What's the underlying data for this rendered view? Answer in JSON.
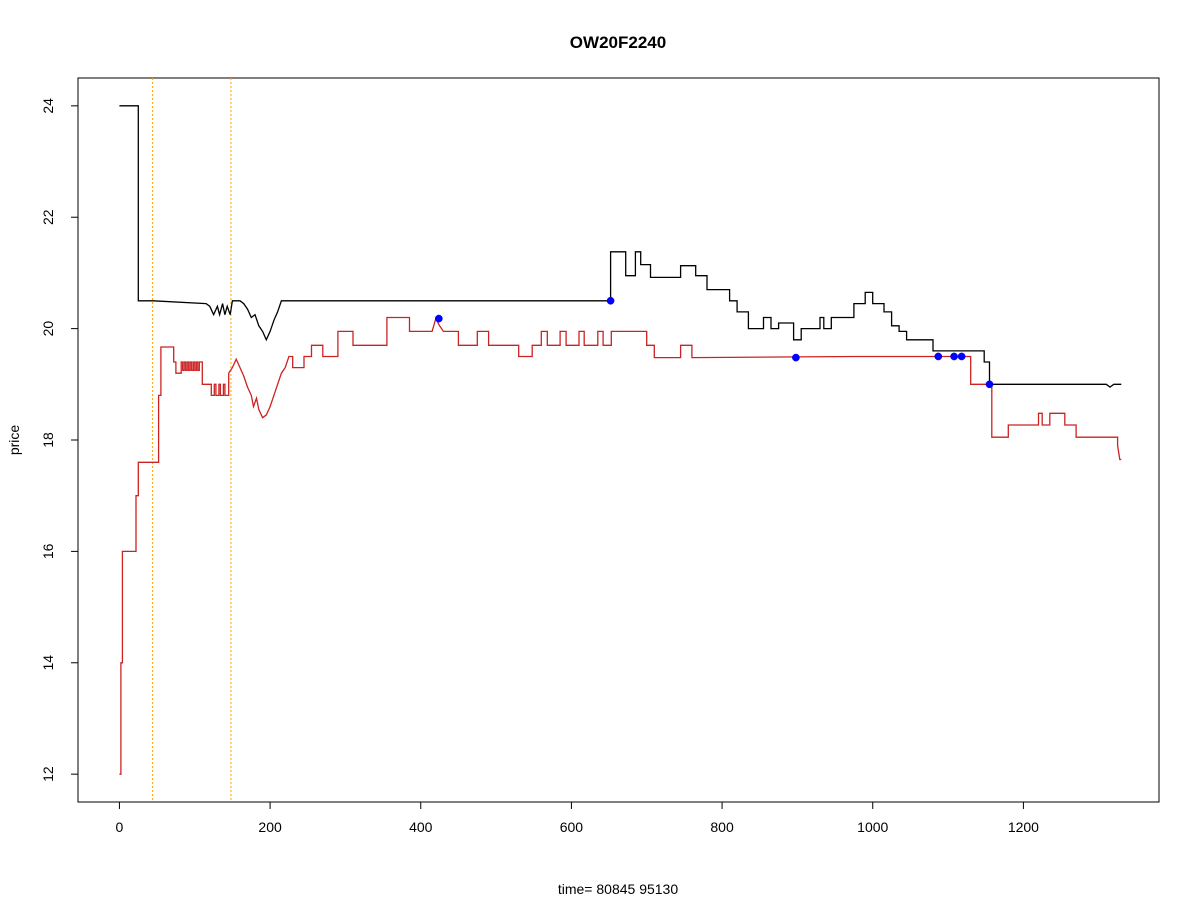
{
  "chart_data": {
    "type": "line",
    "title": "OW20F2240",
    "xlabel": "time= 80845 95130",
    "ylabel": "price",
    "xlim": [
      -55,
      1380
    ],
    "ylim": [
      11.5,
      24.5
    ],
    "xticks": [
      0,
      200,
      400,
      600,
      800,
      1000,
      1200
    ],
    "yticks": [
      12,
      14,
      16,
      18,
      20,
      22,
      24
    ],
    "grid": false,
    "legend": "none",
    "step": true,
    "vlines": {
      "color": "#ffa500",
      "x": [
        44,
        148
      ]
    },
    "series": [
      {
        "color": "#000000",
        "points": [
          [
            0,
            24
          ],
          [
            25,
            24
          ],
          [
            25,
            20.5
          ],
          [
            45,
            20.5
          ],
          [
            115,
            20.45
          ],
          [
            120,
            20.4
          ],
          [
            125,
            20.25
          ],
          [
            130,
            20.4
          ],
          [
            133,
            20.25
          ],
          [
            137,
            20.45
          ],
          [
            140,
            20.25
          ],
          [
            143,
            20.4
          ],
          [
            147,
            20.25
          ],
          [
            150,
            20.5
          ],
          [
            160,
            20.5
          ],
          [
            165,
            20.45
          ],
          [
            170,
            20.35
          ],
          [
            175,
            20.2
          ],
          [
            180,
            20.25
          ],
          [
            185,
            20.05
          ],
          [
            190,
            19.95
          ],
          [
            195,
            19.8
          ],
          [
            200,
            19.95
          ],
          [
            205,
            20.15
          ],
          [
            210,
            20.3
          ],
          [
            215,
            20.5
          ],
          [
            652,
            20.5
          ],
          [
            652,
            21.38
          ],
          [
            672,
            21.38
          ],
          [
            672,
            20.95
          ],
          [
            685,
            20.95
          ],
          [
            685,
            21.38
          ],
          [
            692,
            21.38
          ],
          [
            692,
            21.15
          ],
          [
            705,
            21.15
          ],
          [
            705,
            20.92
          ],
          [
            745,
            20.92
          ],
          [
            745,
            21.13
          ],
          [
            765,
            21.13
          ],
          [
            765,
            20.95
          ],
          [
            780,
            20.95
          ],
          [
            780,
            20.7
          ],
          [
            810,
            20.7
          ],
          [
            810,
            20.5
          ],
          [
            820,
            20.5
          ],
          [
            820,
            20.3
          ],
          [
            835,
            20.3
          ],
          [
            835,
            20.0
          ],
          [
            855,
            20.0
          ],
          [
            855,
            20.2
          ],
          [
            865,
            20.2
          ],
          [
            865,
            20.0
          ],
          [
            875,
            20.0
          ],
          [
            875,
            20.1
          ],
          [
            895,
            20.1
          ],
          [
            895,
            19.8
          ],
          [
            905,
            19.8
          ],
          [
            905,
            20.0
          ],
          [
            930,
            20.0
          ],
          [
            930,
            20.2
          ],
          [
            935,
            20.2
          ],
          [
            935,
            20.0
          ],
          [
            945,
            20.0
          ],
          [
            945,
            20.2
          ],
          [
            975,
            20.2
          ],
          [
            975,
            20.45
          ],
          [
            990,
            20.45
          ],
          [
            990,
            20.65
          ],
          [
            1000,
            20.65
          ],
          [
            1000,
            20.45
          ],
          [
            1015,
            20.45
          ],
          [
            1015,
            20.3
          ],
          [
            1025,
            20.3
          ],
          [
            1025,
            20.05
          ],
          [
            1035,
            20.05
          ],
          [
            1035,
            19.95
          ],
          [
            1045,
            19.95
          ],
          [
            1045,
            19.8
          ],
          [
            1080,
            19.8
          ],
          [
            1080,
            19.6
          ],
          [
            1148,
            19.6
          ],
          [
            1148,
            19.4
          ],
          [
            1155,
            19.4
          ],
          [
            1155,
            19.0
          ],
          [
            1310,
            19.0
          ],
          [
            1315,
            18.95
          ],
          [
            1320,
            19.0
          ],
          [
            1330,
            19.0
          ]
        ]
      },
      {
        "color": "#cc2222",
        "points": [
          [
            0,
            12
          ],
          [
            2,
            12
          ],
          [
            2,
            14
          ],
          [
            4,
            14
          ],
          [
            4,
            16
          ],
          [
            22,
            16
          ],
          [
            22,
            17.0
          ],
          [
            25,
            17.0
          ],
          [
            25,
            17.6
          ],
          [
            52,
            17.6
          ],
          [
            52,
            18.8
          ],
          [
            55,
            18.8
          ],
          [
            55,
            19.67
          ],
          [
            72,
            19.67
          ],
          [
            72,
            19.4
          ],
          [
            75,
            19.4
          ],
          [
            75,
            19.2
          ],
          [
            82,
            19.2
          ],
          [
            82,
            19.4
          ],
          [
            84,
            19.4
          ],
          [
            84,
            19.25
          ],
          [
            86,
            19.25
          ],
          [
            86,
            19.4
          ],
          [
            88,
            19.4
          ],
          [
            88,
            19.25
          ],
          [
            90,
            19.25
          ],
          [
            90,
            19.4
          ],
          [
            92,
            19.4
          ],
          [
            92,
            19.25
          ],
          [
            94,
            19.25
          ],
          [
            94,
            19.4
          ],
          [
            96,
            19.4
          ],
          [
            96,
            19.25
          ],
          [
            98,
            19.25
          ],
          [
            98,
            19.4
          ],
          [
            100,
            19.4
          ],
          [
            100,
            19.25
          ],
          [
            102,
            19.25
          ],
          [
            102,
            19.4
          ],
          [
            104,
            19.4
          ],
          [
            104,
            19.25
          ],
          [
            106,
            19.25
          ],
          [
            106,
            19.4
          ],
          [
            110,
            19.4
          ],
          [
            110,
            19.0
          ],
          [
            122,
            19.0
          ],
          [
            122,
            18.8
          ],
          [
            126,
            18.8
          ],
          [
            126,
            19.0
          ],
          [
            128,
            19.0
          ],
          [
            128,
            18.8
          ],
          [
            132,
            18.8
          ],
          [
            132,
            19.0
          ],
          [
            134,
            19.0
          ],
          [
            134,
            18.8
          ],
          [
            138,
            18.8
          ],
          [
            138,
            19.0
          ],
          [
            140,
            19.0
          ],
          [
            140,
            18.8
          ],
          [
            145,
            18.8
          ],
          [
            145,
            19.2
          ],
          [
            150,
            19.3
          ],
          [
            155,
            19.45
          ],
          [
            160,
            19.3
          ],
          [
            165,
            19.15
          ],
          [
            170,
            18.95
          ],
          [
            175,
            18.8
          ],
          [
            178,
            18.6
          ],
          [
            182,
            18.75
          ],
          [
            185,
            18.55
          ],
          [
            190,
            18.4
          ],
          [
            195,
            18.45
          ],
          [
            200,
            18.6
          ],
          [
            205,
            18.8
          ],
          [
            210,
            19.0
          ],
          [
            215,
            19.2
          ],
          [
            220,
            19.3
          ],
          [
            225,
            19.5
          ],
          [
            230,
            19.5
          ],
          [
            230,
            19.3
          ],
          [
            245,
            19.3
          ],
          [
            245,
            19.5
          ],
          [
            255,
            19.5
          ],
          [
            255,
            19.7
          ],
          [
            270,
            19.7
          ],
          [
            270,
            19.5
          ],
          [
            290,
            19.5
          ],
          [
            290,
            19.95
          ],
          [
            310,
            19.95
          ],
          [
            310,
            19.7
          ],
          [
            355,
            19.7
          ],
          [
            355,
            20.2
          ],
          [
            385,
            20.2
          ],
          [
            385,
            19.95
          ],
          [
            415,
            19.95
          ],
          [
            420,
            20.18
          ],
          [
            425,
            20.05
          ],
          [
            430,
            19.95
          ],
          [
            450,
            19.95
          ],
          [
            450,
            19.7
          ],
          [
            475,
            19.7
          ],
          [
            475,
            19.95
          ],
          [
            490,
            19.95
          ],
          [
            490,
            19.7
          ],
          [
            530,
            19.7
          ],
          [
            530,
            19.5
          ],
          [
            548,
            19.5
          ],
          [
            548,
            19.7
          ],
          [
            560,
            19.7
          ],
          [
            560,
            19.95
          ],
          [
            568,
            19.95
          ],
          [
            568,
            19.7
          ],
          [
            585,
            19.7
          ],
          [
            585,
            19.95
          ],
          [
            593,
            19.95
          ],
          [
            593,
            19.7
          ],
          [
            610,
            19.7
          ],
          [
            610,
            19.95
          ],
          [
            617,
            19.95
          ],
          [
            617,
            19.7
          ],
          [
            635,
            19.7
          ],
          [
            635,
            19.95
          ],
          [
            642,
            19.95
          ],
          [
            642,
            19.7
          ],
          [
            653,
            19.7
          ],
          [
            653,
            19.95
          ],
          [
            700,
            19.95
          ],
          [
            700,
            19.7
          ],
          [
            710,
            19.7
          ],
          [
            710,
            19.48
          ],
          [
            745,
            19.48
          ],
          [
            745,
            19.7
          ],
          [
            760,
            19.7
          ],
          [
            760,
            19.48
          ],
          [
            975,
            19.5
          ],
          [
            1130,
            19.5
          ],
          [
            1130,
            19.0
          ],
          [
            1158,
            19.0
          ],
          [
            1158,
            18.05
          ],
          [
            1180,
            18.05
          ],
          [
            1180,
            18.27
          ],
          [
            1220,
            18.27
          ],
          [
            1220,
            18.48
          ],
          [
            1225,
            18.48
          ],
          [
            1225,
            18.27
          ],
          [
            1235,
            18.27
          ],
          [
            1235,
            18.48
          ],
          [
            1255,
            18.48
          ],
          [
            1255,
            18.27
          ],
          [
            1270,
            18.27
          ],
          [
            1270,
            18.05
          ],
          [
            1325,
            18.05
          ],
          [
            1325,
            17.9
          ],
          [
            1328,
            17.65
          ],
          [
            1330,
            17.65
          ]
        ]
      }
    ],
    "points": {
      "color": "#0000ff",
      "xy": [
        [
          424,
          20.18
        ],
        [
          652,
          20.5
        ],
        [
          898,
          19.48
        ],
        [
          1087,
          19.5
        ],
        [
          1108,
          19.5
        ],
        [
          1118,
          19.5
        ],
        [
          1155,
          19.0
        ]
      ]
    }
  }
}
